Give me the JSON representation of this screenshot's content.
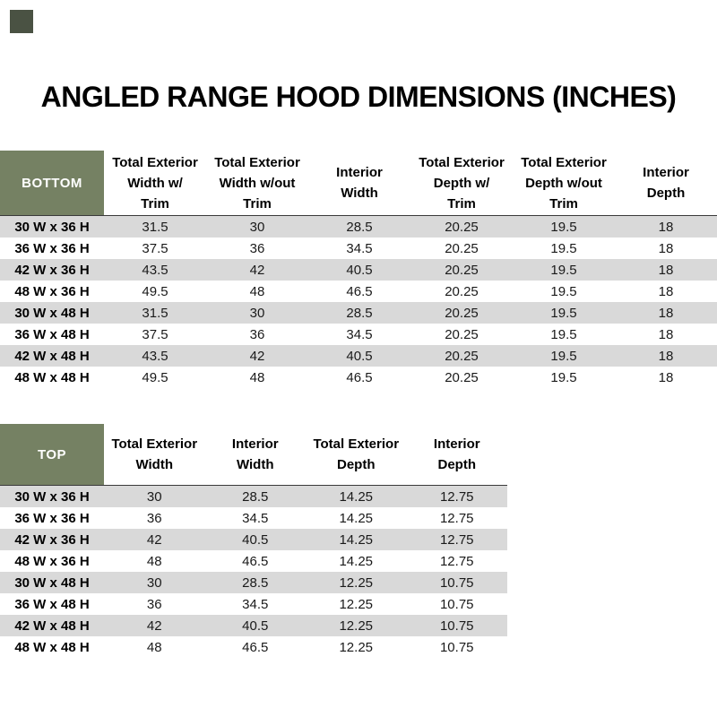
{
  "page": {
    "title": "ANGLED RANGE HOOD DIMENSIONS (INCHES)"
  },
  "colors": {
    "header_green": "#758163",
    "corner_square": "#4A5243",
    "row_stripe": "#D9D9D9",
    "header_border": "#3A3A3A"
  },
  "tables": [
    {
      "name": "BOTTOM",
      "columns": [
        "Total Exterior\nWidth w/\nTrim",
        "Total Exterior\nWidth w/out\nTrim",
        "Interior\nWidth",
        "Total Exterior\nDepth w/\nTrim",
        "Total Exterior\nDepth w/out\nTrim",
        "Interior\nDepth"
      ],
      "rows": [
        {
          "label": "30 W x 36 H",
          "values": [
            "31.5",
            "30",
            "28.5",
            "20.25",
            "19.5",
            "18"
          ]
        },
        {
          "label": "36 W x 36 H",
          "values": [
            "37.5",
            "36",
            "34.5",
            "20.25",
            "19.5",
            "18"
          ]
        },
        {
          "label": "42 W x 36 H",
          "values": [
            "43.5",
            "42",
            "40.5",
            "20.25",
            "19.5",
            "18"
          ]
        },
        {
          "label": "48 W x 36 H",
          "values": [
            "49.5",
            "48",
            "46.5",
            "20.25",
            "19.5",
            "18"
          ]
        },
        {
          "label": "30 W x 48 H",
          "values": [
            "31.5",
            "30",
            "28.5",
            "20.25",
            "19.5",
            "18"
          ]
        },
        {
          "label": "36 W x 48 H",
          "values": [
            "37.5",
            "36",
            "34.5",
            "20.25",
            "19.5",
            "18"
          ]
        },
        {
          "label": "42 W x 48 H",
          "values": [
            "43.5",
            "42",
            "40.5",
            "20.25",
            "19.5",
            "18"
          ]
        },
        {
          "label": "48 W x 48 H",
          "values": [
            "49.5",
            "48",
            "46.5",
            "20.25",
            "19.5",
            "18"
          ]
        }
      ]
    },
    {
      "name": "TOP",
      "columns": [
        "Total Exterior\nWidth",
        "Interior\nWidth",
        "Total Exterior\nDepth",
        "Interior\nDepth"
      ],
      "rows": [
        {
          "label": "30 W x 36 H",
          "values": [
            "30",
            "28.5",
            "14.25",
            "12.75"
          ]
        },
        {
          "label": "36 W x 36 H",
          "values": [
            "36",
            "34.5",
            "14.25",
            "12.75"
          ]
        },
        {
          "label": "42 W x 36 H",
          "values": [
            "42",
            "40.5",
            "14.25",
            "12.75"
          ]
        },
        {
          "label": "48 W x 36 H",
          "values": [
            "48",
            "46.5",
            "14.25",
            "12.75"
          ]
        },
        {
          "label": "30 W x 48 H",
          "values": [
            "30",
            "28.5",
            "12.25",
            "10.75"
          ]
        },
        {
          "label": "36 W x 48 H",
          "values": [
            "36",
            "34.5",
            "12.25",
            "10.75"
          ]
        },
        {
          "label": "42 W x 48 H",
          "values": [
            "42",
            "40.5",
            "12.25",
            "10.75"
          ]
        },
        {
          "label": "48 W x 48 H",
          "values": [
            "48",
            "46.5",
            "12.25",
            "10.75"
          ]
        }
      ]
    }
  ]
}
